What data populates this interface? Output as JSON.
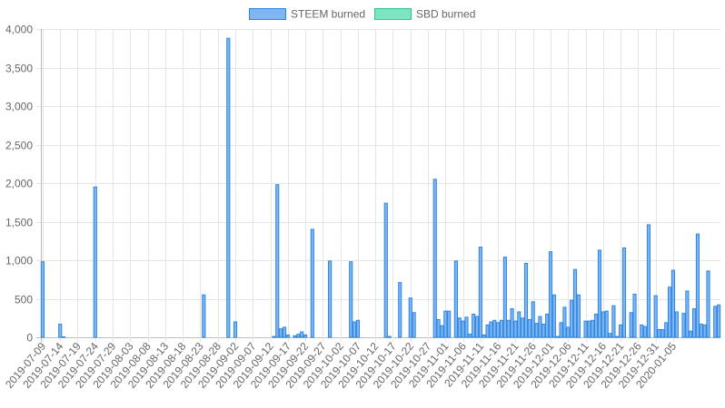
{
  "chart_data": {
    "type": "bar",
    "stacked": true,
    "grid": true,
    "legend_position": "top",
    "ylim": [
      0,
      4000
    ],
    "y_ticks": [
      "0",
      "500",
      "1,000",
      "1,500",
      "2,000",
      "2,500",
      "3,000",
      "3,500",
      "4,000"
    ],
    "x_tick_labels": [
      "2019-07-09",
      "2019-07-14",
      "2019-07-19",
      "2019-07-24",
      "2019-07-29",
      "2019-08-03",
      "2019-08-08",
      "2019-08-13",
      "2019-08-18",
      "2019-08-23",
      "2019-08-28",
      "2019-09-02",
      "2019-09-07",
      "2019-09-12",
      "2019-09-17",
      "2019-09-22",
      "2019-09-27",
      "2019-10-02",
      "2019-10-07",
      "2019-10-12",
      "2019-10-17",
      "2019-10-22",
      "2019-10-27",
      "2019-11-01",
      "2019-11-06",
      "2019-11-11",
      "2019-11-16",
      "2019-11-21",
      "2019-11-26",
      "2019-12-01",
      "2019-12-06",
      "2019-12-11",
      "2019-12-16",
      "2019-12-21",
      "2019-12-26",
      "2019-12-31",
      "2020-01-05"
    ],
    "x_start_date": "2019-07-09",
    "series": [
      {
        "name": "STEEM burned",
        "fill": "#7eb6f4",
        "stroke": "#2f86e0",
        "values": [
          980,
          0,
          0,
          0,
          0,
          170,
          5,
          0,
          0,
          0,
          0,
          0,
          0,
          0,
          0,
          1950,
          0,
          0,
          0,
          0,
          0,
          0,
          0,
          0,
          0,
          0,
          0,
          0,
          0,
          0,
          0,
          0,
          0,
          0,
          0,
          0,
          0,
          0,
          0,
          0,
          0,
          0,
          0,
          0,
          0,
          0,
          550,
          0,
          0,
          0,
          0,
          0,
          0,
          3880,
          0,
          200,
          0,
          0,
          0,
          0,
          0,
          0,
          0,
          0,
          0,
          0,
          10,
          1980,
          110,
          130,
          30,
          0,
          20,
          40,
          70,
          30,
          0,
          1400,
          0,
          0,
          0,
          0,
          990,
          0,
          0,
          0,
          0,
          0,
          980,
          200,
          220,
          0,
          0,
          0,
          0,
          0,
          0,
          0,
          1740,
          10,
          0,
          0,
          710,
          0,
          0,
          510,
          320,
          0,
          0,
          0,
          0,
          0,
          2050,
          230,
          150,
          340,
          340,
          0,
          990,
          250,
          210,
          260,
          40,
          300,
          270,
          1170,
          30,
          160,
          200,
          220,
          190,
          220,
          1040,
          220,
          370,
          210,
          330,
          250,
          960,
          230,
          460,
          180,
          270,
          170,
          300,
          1110,
          550,
          10,
          190,
          390,
          130,
          480,
          880,
          550,
          0,
          210,
          210,
          220,
          300,
          1130,
          330,
          340,
          50,
          410,
          10,
          160,
          1160,
          0,
          320,
          560,
          0,
          160,
          140,
          1460,
          0,
          540,
          100,
          100,
          190,
          650,
          870,
          330,
          0,
          310,
          600,
          80,
          370,
          1340,
          170,
          160,
          860,
          0,
          400,
          420
        ]
      },
      {
        "name": "SBD burned",
        "fill": "#7de6c0",
        "stroke": "#2fc294",
        "values": [
          0,
          0,
          0,
          0,
          0,
          0,
          0,
          0,
          0,
          0,
          0,
          0,
          0,
          0,
          0,
          0,
          0,
          0,
          0,
          0,
          0,
          0,
          0,
          0,
          0,
          0,
          0,
          0,
          0,
          0,
          0,
          0,
          0,
          0,
          0,
          0,
          0,
          0,
          0,
          0,
          0,
          0,
          0,
          0,
          0,
          0,
          0,
          0,
          0,
          0,
          0,
          0,
          0,
          0,
          0,
          0,
          0,
          0,
          0,
          0,
          0,
          0,
          0,
          0,
          0,
          0,
          0,
          0,
          0,
          0,
          0,
          0,
          0,
          0,
          0,
          0,
          0,
          0,
          0,
          0,
          0,
          0,
          0,
          0,
          0,
          0,
          0,
          0,
          0,
          0,
          0,
          0,
          0,
          0,
          0,
          0,
          0,
          0,
          0,
          0,
          0,
          0,
          0,
          0,
          0,
          0,
          0,
          0,
          0,
          0,
          0,
          0,
          0,
          0,
          0,
          0,
          0,
          0,
          0,
          0,
          0,
          0,
          0,
          0,
          0,
          0,
          0,
          0,
          0,
          0,
          0,
          0,
          0,
          0,
          0,
          0,
          0,
          0,
          0,
          0,
          0,
          0,
          0,
          0,
          0,
          0,
          0,
          0,
          0,
          0,
          0,
          0,
          0,
          0,
          0,
          0,
          0,
          0,
          0,
          0,
          0,
          0,
          0,
          0,
          0,
          0,
          0,
          0,
          0,
          0,
          0,
          0,
          0,
          0,
          0,
          0,
          0,
          0,
          0,
          0,
          0,
          0,
          0,
          0,
          0,
          0,
          0,
          0,
          0,
          0,
          0,
          0,
          0,
          0,
          0,
          0,
          0,
          0,
          0,
          0,
          0,
          0
        ]
      }
    ]
  }
}
